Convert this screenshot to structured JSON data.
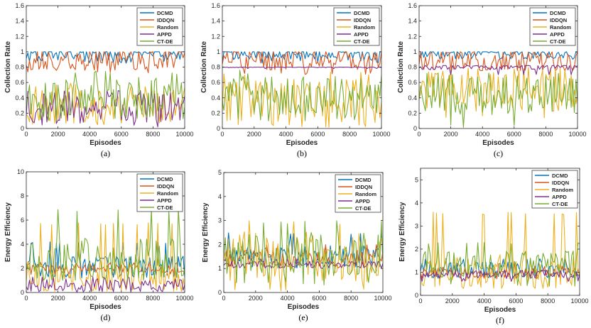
{
  "colors": {
    "DCMD": "#0072BD",
    "IDDQN": "#D95319",
    "Random": "#EDB120",
    "APPD": "#7E2F8E",
    "CT-DE": "#77AC30"
  },
  "chart_data": [
    {
      "type": "line",
      "panel_label": "(a)",
      "title": "",
      "xlabel": "Episodes",
      "ylabel": "Collection Rate",
      "xlim": [
        0,
        10000
      ],
      "ylim": [
        0,
        1.6
      ],
      "xticks": [
        0,
        2000,
        4000,
        6000,
        8000,
        10000
      ],
      "yticks": [
        0,
        0.2,
        0.4,
        0.6,
        0.8,
        1,
        1.2,
        1.4,
        1.6
      ],
      "ytick_labels": [
        "0",
        "0.2",
        "0.4",
        "0.6",
        "0.8",
        "1",
        "1.2",
        "1.4",
        "1.6"
      ],
      "legend": [
        "DCMD",
        "IDDQN",
        "Random",
        "APPD",
        "CT-DE"
      ],
      "legend_position": "top-right",
      "series": [
        {
          "name": "DCMD",
          "stats": {
            "mean": 0.97,
            "min": 0.84,
            "max": 1.0,
            "cap": 1.0,
            "noise": 0.06
          }
        },
        {
          "name": "IDDQN",
          "stats": {
            "mean": 0.9,
            "min": 0.72,
            "max": 1.0,
            "cap": 1.0,
            "noise": 0.08
          }
        },
        {
          "name": "Random",
          "stats": {
            "mean": 0.3,
            "min": 0.05,
            "max": 0.6,
            "noise": 0.14
          }
        },
        {
          "name": "APPD",
          "stats": {
            "mean": 0.28,
            "min": 0.02,
            "max": 0.5,
            "noise": 0.12
          }
        },
        {
          "name": "CT-DE",
          "stats": {
            "mean": 0.4,
            "min": 0.1,
            "max": 0.75,
            "noise": 0.15
          }
        }
      ]
    },
    {
      "type": "line",
      "panel_label": "(b)",
      "title": "",
      "xlabel": "Episodes",
      "ylabel": "Collection Rate",
      "xlim": [
        0,
        10000
      ],
      "ylim": [
        0,
        1.6
      ],
      "xticks": [
        0,
        2000,
        4000,
        6000,
        8000,
        10000
      ],
      "yticks": [
        0,
        0.2,
        0.4,
        0.6,
        0.8,
        1,
        1.2,
        1.4,
        1.6
      ],
      "ytick_labels": [
        "0",
        "0.2",
        "0.4",
        "0.6",
        "0.8",
        "1",
        "1.2",
        "1.4",
        "1.6"
      ],
      "legend": [
        "DCMD",
        "IDDQN",
        "Random",
        "APPD",
        "CT-DE"
      ],
      "legend_position": "top-right",
      "series": [
        {
          "name": "DCMD",
          "stats": {
            "mean": 0.97,
            "min": 0.85,
            "max": 1.0,
            "cap": 1.0,
            "noise": 0.05
          }
        },
        {
          "name": "IDDQN",
          "stats": {
            "mean": 0.9,
            "min": 0.7,
            "max": 1.0,
            "cap": 1.0,
            "noise": 0.08
          }
        },
        {
          "name": "Random",
          "stats": {
            "mean": 0.35,
            "min": 0.0,
            "max": 0.75,
            "noise": 0.18
          }
        },
        {
          "name": "APPD",
          "stats": {
            "mean": 0.8,
            "min": 0.78,
            "max": 0.8,
            "noise": 0.005
          }
        },
        {
          "name": "CT-DE",
          "stats": {
            "mean": 0.45,
            "min": 0.1,
            "max": 0.8,
            "noise": 0.15
          }
        }
      ]
    },
    {
      "type": "line",
      "panel_label": "(c)",
      "title": "",
      "xlabel": "Episodes",
      "ylabel": "Collection Rate",
      "xlim": [
        0,
        10000
      ],
      "ylim": [
        0,
        1.6
      ],
      "xticks": [
        0,
        2000,
        4000,
        6000,
        8000,
        10000
      ],
      "yticks": [
        0,
        0.2,
        0.4,
        0.6,
        0.8,
        1,
        1.2,
        1.4,
        1.6
      ],
      "ytick_labels": [
        "0",
        "0.2",
        "0.4",
        "0.6",
        "0.8",
        "1",
        "1.2",
        "1.4",
        "1.6"
      ],
      "legend": [
        "DCMD",
        "IDDQN",
        "Random",
        "APPD",
        "CT-DE"
      ],
      "legend_position": "top-right",
      "series": [
        {
          "name": "DCMD",
          "stats": {
            "mean": 0.98,
            "min": 0.9,
            "max": 1.0,
            "cap": 1.0,
            "noise": 0.04
          }
        },
        {
          "name": "IDDQN",
          "stats": {
            "mean": 0.88,
            "min": 0.75,
            "max": 1.0,
            "cap": 1.0,
            "noise": 0.07
          }
        },
        {
          "name": "Random",
          "stats": {
            "mean": 0.5,
            "min": 0.12,
            "max": 0.8,
            "noise": 0.16
          }
        },
        {
          "name": "APPD",
          "stats": {
            "mean": 0.8,
            "min": 0.7,
            "max": 0.82,
            "noise": 0.02
          }
        },
        {
          "name": "CT-DE",
          "stats": {
            "mean": 0.45,
            "min": 0.0,
            "max": 0.75,
            "noise": 0.15
          }
        }
      ]
    },
    {
      "type": "line",
      "panel_label": "(d)",
      "title": "",
      "xlabel": "Episodes",
      "ylabel": "Energy Efficiency",
      "xlim": [
        0,
        10000
      ],
      "ylim": [
        0,
        10
      ],
      "xticks": [
        0,
        2000,
        4000,
        6000,
        8000,
        10000
      ],
      "yticks": [
        0,
        2,
        4,
        6,
        8,
        10
      ],
      "ytick_labels": [
        "0",
        "2",
        "4",
        "6",
        "8",
        "10"
      ],
      "legend": [
        "DCMD",
        "IDDQN",
        "Random",
        "APPD",
        "CT-DE"
      ],
      "legend_position": "top-right",
      "series": [
        {
          "name": "DCMD",
          "stats": {
            "mean": 2.1,
            "min": 1.2,
            "max": 4.2,
            "noise": 0.5
          }
        },
        {
          "name": "IDDQN",
          "stats": {
            "mean": 2.0,
            "min": 1.5,
            "max": 2.5,
            "noise": 0.2
          }
        },
        {
          "name": "Random",
          "stats": {
            "mean": 1.3,
            "min": 0.1,
            "max": 5.8,
            "noise": 0.7
          }
        },
        {
          "name": "APPD",
          "stats": {
            "mean": 0.6,
            "min": 0.0,
            "max": 1.3,
            "noise": 0.3
          }
        },
        {
          "name": "CT-DE",
          "stats": {
            "mean": 2.8,
            "min": 1.0,
            "max": 7.0,
            "noise": 1.0
          }
        }
      ]
    },
    {
      "type": "line",
      "panel_label": "(e)",
      "title": "",
      "xlabel": "Episodes",
      "ylabel": "Energy Efficiency",
      "xlim": [
        0,
        10000
      ],
      "ylim": [
        0,
        5
      ],
      "xticks": [
        0,
        2000,
        4000,
        6000,
        8000,
        10000
      ],
      "yticks": [
        0,
        1,
        2,
        3,
        4,
        5
      ],
      "ytick_labels": [
        "0",
        "1",
        "2",
        "3",
        "4",
        "5"
      ],
      "legend": [
        "DCMD",
        "IDDQN",
        "Random",
        "APPD",
        "CT-DE"
      ],
      "legend_position": "top-right",
      "series": [
        {
          "name": "DCMD",
          "stats": {
            "mean": 1.5,
            "min": 1.0,
            "max": 2.5,
            "noise": 0.25
          }
        },
        {
          "name": "IDDQN",
          "stats": {
            "mean": 1.4,
            "min": 1.0,
            "max": 2.0,
            "noise": 0.2
          }
        },
        {
          "name": "Random",
          "stats": {
            "mean": 1.5,
            "min": 0.0,
            "max": 3.0,
            "noise": 0.6
          }
        },
        {
          "name": "APPD",
          "stats": {
            "mean": 1.15,
            "min": 1.0,
            "max": 1.4,
            "noise": 0.08
          }
        },
        {
          "name": "CT-DE",
          "stats": {
            "mean": 1.6,
            "min": 0.3,
            "max": 3.0,
            "noise": 0.5
          }
        }
      ]
    },
    {
      "type": "line",
      "panel_label": "(f)",
      "title": "",
      "xlabel": "Episodes",
      "ylabel": "Energy Efficiency",
      "xlim": [
        0,
        10000
      ],
      "ylim": [
        0,
        5.5
      ],
      "xticks": [
        0,
        2000,
        4000,
        6000,
        8000,
        10000
      ],
      "yticks": [
        0,
        1,
        2,
        3,
        4,
        5
      ],
      "ytick_labels": [
        "0",
        "1",
        "2",
        "3",
        "4",
        "5"
      ],
      "legend": [
        "DCMD",
        "IDDQN",
        "Random",
        "APPD",
        "CT-DE"
      ],
      "legend_position": "top-right",
      "series": [
        {
          "name": "DCMD",
          "stats": {
            "mean": 1.1,
            "min": 0.7,
            "max": 1.6,
            "noise": 0.2
          }
        },
        {
          "name": "IDDQN",
          "stats": {
            "mean": 1.0,
            "min": 0.7,
            "max": 1.4,
            "noise": 0.15
          }
        },
        {
          "name": "Random",
          "stats": {
            "mean": 1.0,
            "min": 0.3,
            "max": 3.6,
            "noise": 0.45
          }
        },
        {
          "name": "APPD",
          "stats": {
            "mean": 0.9,
            "min": 0.6,
            "max": 1.1,
            "noise": 0.1
          }
        },
        {
          "name": "CT-DE",
          "stats": {
            "mean": 1.3,
            "min": 0.4,
            "max": 2.3,
            "noise": 0.35
          }
        }
      ]
    }
  ]
}
